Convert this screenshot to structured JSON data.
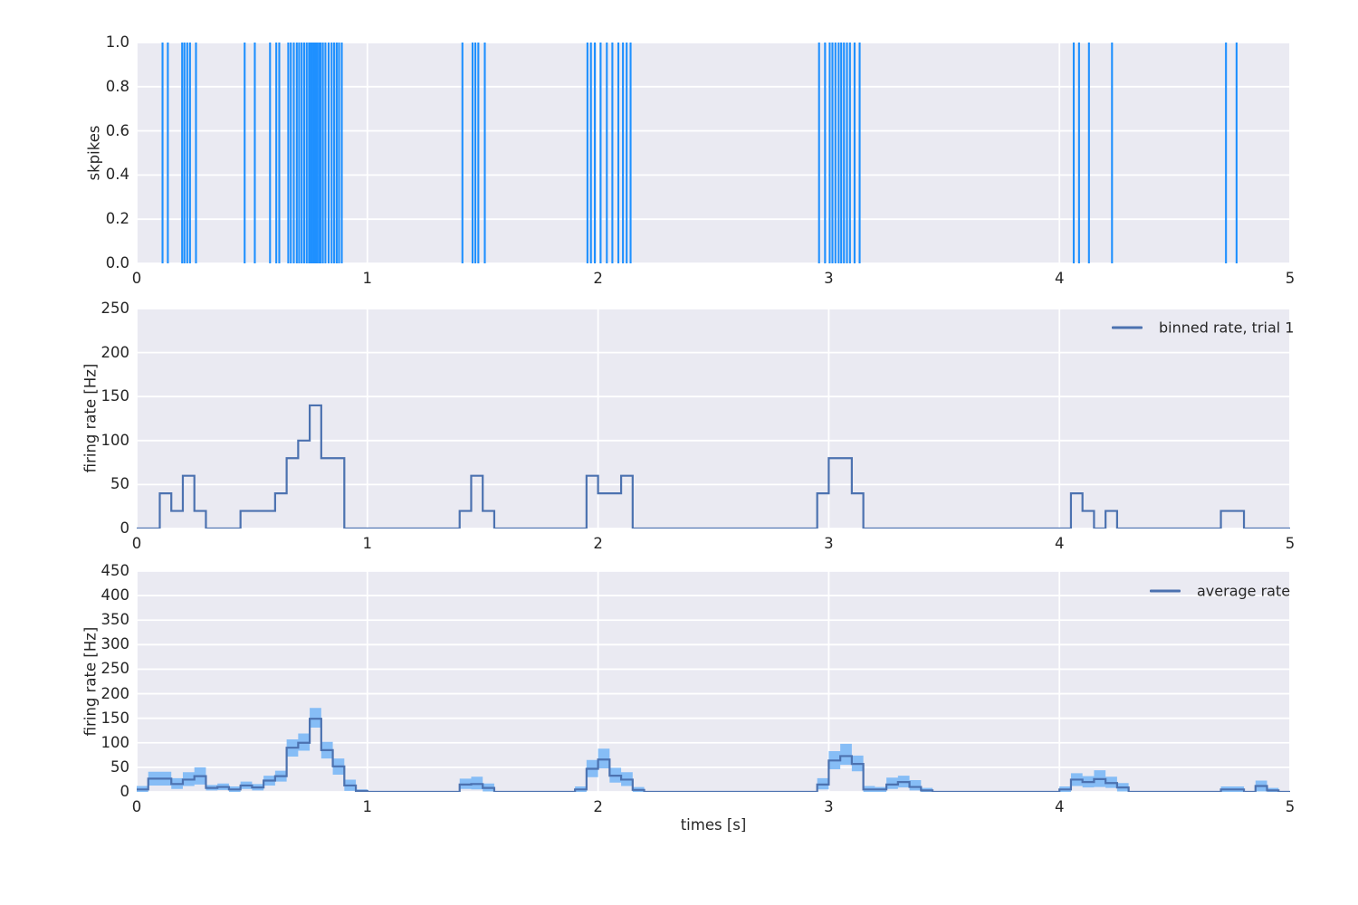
{
  "figure": {
    "background": "#ffffff",
    "axes_background": "#EAEAF2",
    "grid_color": "#ffffff",
    "text_color": "#262626",
    "spike_color": "#1E90FF",
    "line_color": "#4C72B0",
    "band_color": "#86BDF6"
  },
  "top_plot": {
    "ylabel": "skpikes",
    "ytick_labels": [
      "0.0",
      "0.2",
      "0.4",
      "0.6",
      "0.8",
      "1.0"
    ],
    "xtick_labels": [
      "0",
      "1",
      "2",
      "3",
      "4",
      "5"
    ]
  },
  "middle_plot": {
    "ylabel": "firing rate [Hz]",
    "legend_label": "binned rate, trial 1",
    "ytick_labels": [
      "0",
      "50",
      "100",
      "150",
      "200",
      "250"
    ],
    "xtick_labels": [
      "0",
      "1",
      "2",
      "3",
      "4",
      "5"
    ]
  },
  "bottom_plot": {
    "ylabel": "firing rate [Hz]",
    "xlabel": "times [s]",
    "legend_label": "average rate",
    "ytick_labels": [
      "0",
      "50",
      "100",
      "150",
      "200",
      "250",
      "300",
      "350",
      "400",
      "450"
    ],
    "xtick_labels": [
      "0",
      "1",
      "2",
      "3",
      "4",
      "5"
    ]
  },
  "chart_data": [
    {
      "type": "event-raster",
      "ylabel": "skpikes",
      "xlim": [
        0,
        5
      ],
      "ylim": [
        0,
        1
      ],
      "color": "#1E90FF",
      "spike_times": [
        0.112,
        0.135,
        0.197,
        0.207,
        0.219,
        0.231,
        0.257,
        0.468,
        0.512,
        0.578,
        0.605,
        0.618,
        0.657,
        0.668,
        0.681,
        0.694,
        0.704,
        0.715,
        0.726,
        0.737,
        0.747,
        0.754,
        0.761,
        0.768,
        0.775,
        0.782,
        0.79,
        0.797,
        0.807,
        0.818,
        0.832,
        0.845,
        0.856,
        0.867,
        0.877,
        0.889,
        1.412,
        1.456,
        1.468,
        1.481,
        1.509,
        1.954,
        1.969,
        1.986,
        2.011,
        2.038,
        2.062,
        2.088,
        2.108,
        2.124,
        2.141,
        2.958,
        2.984,
        3.004,
        3.016,
        3.029,
        3.043,
        3.054,
        3.066,
        3.079,
        3.092,
        3.112,
        3.134,
        4.062,
        4.085,
        4.128,
        4.228,
        4.722,
        4.768
      ]
    },
    {
      "type": "step",
      "name": "binned rate, trial 1",
      "ylabel": "firing rate [Hz]",
      "xlim": [
        0,
        5
      ],
      "ylim": [
        0,
        250
      ],
      "bin_width": 0.05,
      "color": "#4C72B0",
      "segments": [
        [
          0.0,
          0.1,
          0
        ],
        [
          0.1,
          0.15,
          40
        ],
        [
          0.15,
          0.2,
          20
        ],
        [
          0.2,
          0.25,
          60
        ],
        [
          0.25,
          0.3,
          20
        ],
        [
          0.3,
          0.45,
          0
        ],
        [
          0.45,
          0.6,
          20
        ],
        [
          0.6,
          0.65,
          40
        ],
        [
          0.65,
          0.7,
          80
        ],
        [
          0.7,
          0.75,
          100
        ],
        [
          0.75,
          0.8,
          140
        ],
        [
          0.8,
          0.9,
          80
        ],
        [
          0.9,
          1.4,
          0
        ],
        [
          1.4,
          1.45,
          20
        ],
        [
          1.45,
          1.5,
          60
        ],
        [
          1.5,
          1.55,
          20
        ],
        [
          1.55,
          1.95,
          0
        ],
        [
          1.95,
          2.0,
          60
        ],
        [
          2.0,
          2.1,
          40
        ],
        [
          2.1,
          2.15,
          60
        ],
        [
          2.15,
          2.95,
          0
        ],
        [
          2.95,
          3.0,
          40
        ],
        [
          3.0,
          3.1,
          80
        ],
        [
          3.1,
          3.15,
          40
        ],
        [
          3.15,
          4.05,
          0
        ],
        [
          4.05,
          4.1,
          40
        ],
        [
          4.1,
          4.15,
          20
        ],
        [
          4.15,
          4.2,
          0
        ],
        [
          4.2,
          4.25,
          20
        ],
        [
          4.25,
          4.7,
          0
        ],
        [
          4.7,
          4.8,
          20
        ],
        [
          4.8,
          5.0,
          0
        ]
      ]
    },
    {
      "type": "step-with-band",
      "name": "average rate",
      "xlabel": "times [s]",
      "ylabel": "firing rate [Hz]",
      "xlim": [
        0,
        5
      ],
      "ylim": [
        0,
        450
      ],
      "bin_width": 0.05,
      "t_start": 0,
      "line_color": "#4C72B0",
      "band_color": "#86BDF6",
      "mean": [
        5,
        27,
        27,
        16,
        25,
        32,
        8,
        10,
        5,
        13,
        9,
        23,
        32,
        90,
        100,
        149,
        85,
        52,
        13,
        2,
        0,
        0,
        0,
        0,
        0,
        0,
        0,
        0,
        15,
        16,
        8,
        0,
        0,
        0,
        0,
        0,
        0,
        0,
        5,
        47,
        66,
        33,
        25,
        4,
        0,
        0,
        0,
        0,
        0,
        0,
        0,
        0,
        0,
        0,
        0,
        0,
        0,
        0,
        0,
        15,
        64,
        73,
        57,
        5,
        5,
        15,
        20,
        10,
        3,
        0,
        0,
        0,
        0,
        0,
        0,
        0,
        0,
        0,
        0,
        0,
        5,
        25,
        20,
        26,
        18,
        9,
        0,
        0,
        0,
        0,
        0,
        0,
        0,
        0,
        5,
        5,
        0,
        12,
        3,
        0
      ],
      "lower": [
        0,
        13,
        13,
        6,
        12,
        15,
        3,
        4,
        0,
        6,
        3,
        13,
        21,
        72,
        84,
        131,
        68,
        35,
        2,
        0,
        0,
        0,
        0,
        0,
        0,
        0,
        0,
        0,
        6,
        5,
        1,
        0,
        0,
        0,
        0,
        0,
        0,
        0,
        0,
        30,
        48,
        19,
        12,
        0,
        0,
        0,
        0,
        0,
        0,
        0,
        0,
        0,
        0,
        0,
        0,
        0,
        0,
        0,
        0,
        5,
        46,
        55,
        42,
        0,
        0,
        6,
        9,
        3,
        0,
        0,
        0,
        0,
        0,
        0,
        0,
        0,
        0,
        0,
        0,
        0,
        0,
        12,
        9,
        10,
        8,
        1,
        0,
        0,
        0,
        0,
        0,
        0,
        0,
        0,
        0,
        0,
        0,
        1,
        0,
        0
      ],
      "upper": [
        12,
        41,
        41,
        28,
        40,
        50,
        14,
        17,
        11,
        21,
        16,
        33,
        43,
        107,
        119,
        171,
        102,
        68,
        25,
        5,
        0,
        0,
        0,
        0,
        0,
        0,
        0,
        0,
        27,
        31,
        17,
        0,
        0,
        0,
        0,
        0,
        0,
        0,
        11,
        65,
        88,
        49,
        40,
        10,
        0,
        0,
        0,
        0,
        0,
        0,
        0,
        0,
        0,
        0,
        0,
        0,
        0,
        0,
        0,
        28,
        83,
        98,
        74,
        12,
        10,
        29,
        33,
        24,
        8,
        0,
        0,
        0,
        0,
        0,
        0,
        0,
        0,
        0,
        0,
        0,
        11,
        38,
        32,
        44,
        31,
        18,
        0,
        0,
        0,
        0,
        0,
        0,
        0,
        0,
        11,
        11,
        0,
        23,
        8,
        0
      ]
    }
  ]
}
